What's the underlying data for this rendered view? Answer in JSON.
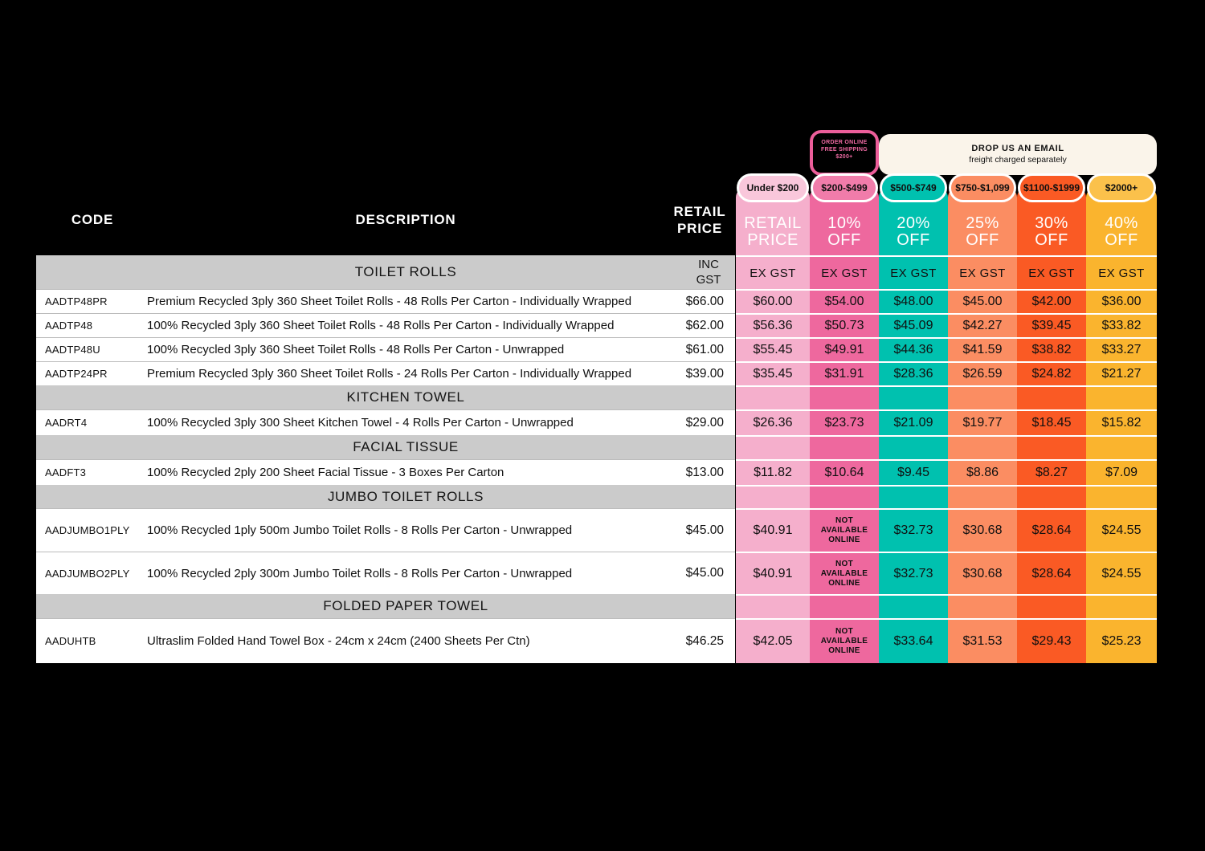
{
  "columns_header": {
    "code": "CODE",
    "description": "DESCRIPTION",
    "retail": "RETAIL PRICE"
  },
  "promo_online": {
    "lines": [
      "ORDER ONLINE",
      "FREE SHIPPING",
      "$200+"
    ],
    "border_color": "#EC5E9A"
  },
  "promo_email": {
    "title": "DROP US AN EMAIL",
    "subtitle": "freight charged separately",
    "bg": "#FAF4EA"
  },
  "labels": {
    "ex_gst": "EX GST",
    "inc_gst": "INC GST",
    "not_available": "NOT AVAILABLE ONLINE"
  },
  "tiers": [
    {
      "range": "Under $200",
      "discount": "RETAIL PRICE",
      "color": "#F5AFCC",
      "pill_color": "#F9C7DB"
    },
    {
      "range": "$200-$499",
      "discount": "10% OFF",
      "color": "#EE689E",
      "pill_color": "#F17CAA"
    },
    {
      "range": "$500-$749",
      "discount": "20% OFF",
      "color": "#00C1AF",
      "pill_color": "#00C1AF"
    },
    {
      "range": "$750-$1,099",
      "discount": "25% OFF",
      "color": "#FB8D62",
      "pill_color": "#FB8D62"
    },
    {
      "range": "$1100-$1999",
      "discount": "30% OFF",
      "color": "#FA5A24",
      "pill_color": "#FA5A24"
    },
    {
      "range": "$2000+",
      "discount": "40% OFF",
      "color": "#FAB42E",
      "pill_color": "#FBC14B"
    }
  ],
  "rows": [
    {
      "type": "section",
      "title": "TOILET ROLLS"
    },
    {
      "type": "product",
      "code": "AADTP48PR",
      "description": "Premium Recycled 3ply 360 Sheet Toilet Rolls - 48 Rolls Per Carton - Individually Wrapped",
      "retail": "$66.00",
      "tiers": [
        "$60.00",
        "$54.00",
        "$48.00",
        "$45.00",
        "$42.00",
        "$36.00"
      ]
    },
    {
      "type": "product",
      "code": "AADTP48",
      "description": "100% Recycled 3ply 360 Sheet Toilet Rolls - 48 Rolls Per Carton - Individually Wrapped",
      "retail": "$62.00",
      "tiers": [
        "$56.36",
        "$50.73",
        "$45.09",
        "$42.27",
        "$39.45",
        "$33.82"
      ]
    },
    {
      "type": "product",
      "code": "AADTP48U",
      "description": "100% Recycled 3ply 360 Sheet Toilet Rolls - 48 Rolls Per Carton - Unwrapped",
      "retail": "$61.00",
      "tiers": [
        "$55.45",
        "$49.91",
        "$44.36",
        "$41.59",
        "$38.82",
        "$33.27"
      ]
    },
    {
      "type": "product",
      "code": "AADTP24PR",
      "description": "Premium Recycled 3ply 360 Sheet Toilet Rolls - 24 Rolls Per Carton - Individually Wrapped",
      "retail": "$39.00",
      "tiers": [
        "$35.45",
        "$31.91",
        "$28.36",
        "$26.59",
        "$24.82",
        "$21.27"
      ]
    },
    {
      "type": "section",
      "title": "KITCHEN TOWEL"
    },
    {
      "type": "product",
      "code": "AADRT4",
      "description": "100% Recycled 3ply 300 Sheet Kitchen Towel - 4 Rolls Per Carton - Unwrapped",
      "retail": "$29.00",
      "tiers": [
        "$26.36",
        "$23.73",
        "$21.09",
        "$19.77",
        "$18.45",
        "$15.82"
      ]
    },
    {
      "type": "section",
      "title": "FACIAL TISSUE"
    },
    {
      "type": "product",
      "code": "AADFT3",
      "description": "100% Recycled 2ply 200 Sheet Facial Tissue - 3 Boxes Per Carton",
      "retail": "$13.00",
      "tiers": [
        "$11.82",
        "$10.64",
        "$9.45",
        "$8.86",
        "$8.27",
        "$7.09"
      ]
    },
    {
      "type": "section",
      "title": "JUMBO TOILET ROLLS"
    },
    {
      "type": "product",
      "code": "AADJUMBO1PLY",
      "description": "100% Recycled 1ply 500m Jumbo Toilet Rolls - 8 Rolls Per Carton - Unwrapped",
      "retail": "$45.00",
      "tiers": [
        "$40.91",
        "NOT AVAILABLE ONLINE",
        "$32.73",
        "$30.68",
        "$28.64",
        "$24.55"
      ]
    },
    {
      "type": "product",
      "code": "AADJUMBO2PLY",
      "description": "100% Recycled 2ply 300m Jumbo Toilet Rolls - 8 Rolls Per Carton - Unwrapped",
      "retail": "$45.00",
      "tiers": [
        "$40.91",
        "NOT AVAILABLE ONLINE",
        "$32.73",
        "$30.68",
        "$28.64",
        "$24.55"
      ]
    },
    {
      "type": "section",
      "title": "FOLDED PAPER TOWEL"
    },
    {
      "type": "product",
      "code": "AADUHTB",
      "description": "Ultraslim Folded Hand Towel Box - 24cm x 24cm (2400 Sheets Per Ctn)",
      "retail": "$46.25",
      "tiers": [
        "$42.05",
        "NOT AVAILABLE ONLINE",
        "$33.64",
        "$31.53",
        "$29.43",
        "$25.23"
      ]
    }
  ]
}
